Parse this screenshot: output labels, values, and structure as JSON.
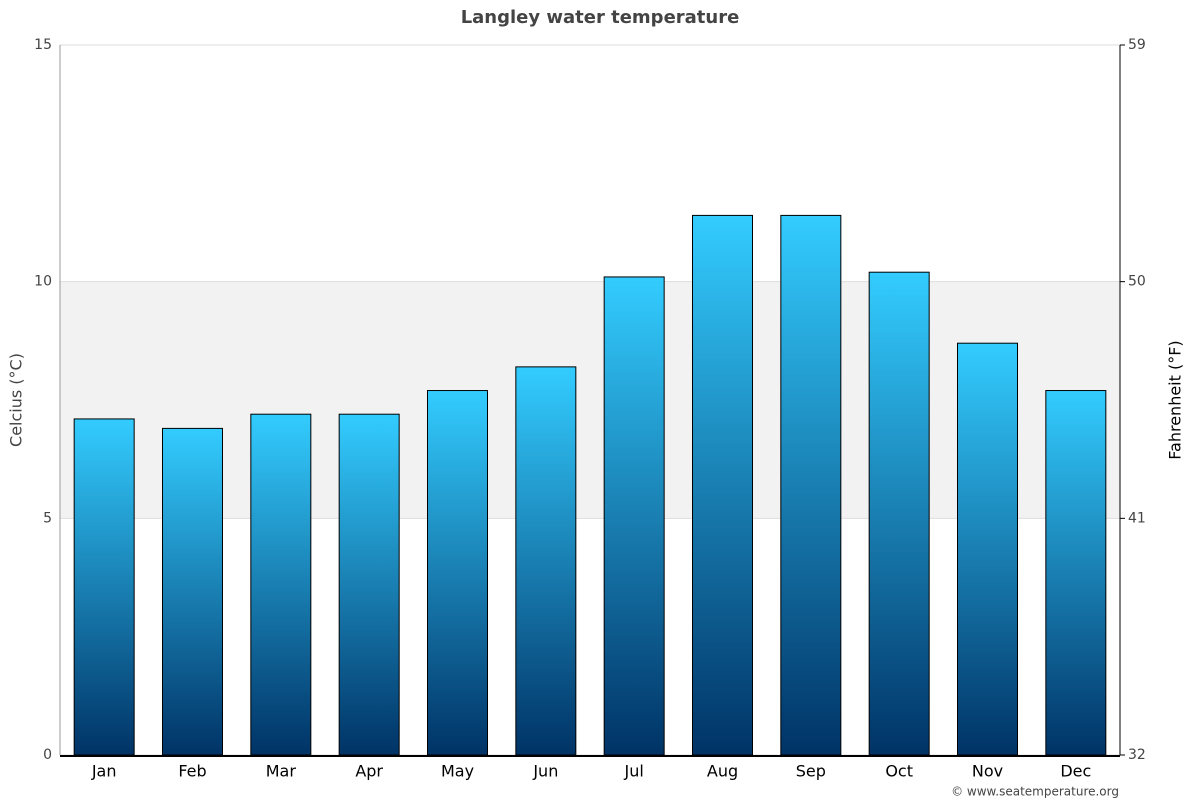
{
  "chart_data": {
    "type": "bar",
    "title": "Langley water temperature",
    "categories": [
      "Jan",
      "Feb",
      "Mar",
      "Apr",
      "May",
      "Jun",
      "Jul",
      "Aug",
      "Sep",
      "Oct",
      "Nov",
      "Dec"
    ],
    "values": [
      7.1,
      6.9,
      7.2,
      7.2,
      7.7,
      8.2,
      10.1,
      11.4,
      11.4,
      10.2,
      8.7,
      7.7
    ],
    "colors": [
      "#33ccff",
      "#003366"
    ],
    "ylim": [
      0,
      15
    ],
    "yticks": [
      0,
      5,
      10,
      15
    ],
    "y2lim": [
      32,
      59
    ],
    "y2ticks": [
      32,
      41,
      50,
      59
    ],
    "ylabel": "Celcius (°C)",
    "y2label": "Fahrenheit (°F)",
    "source": "© www.seatemperature.org",
    "grid": true
  }
}
